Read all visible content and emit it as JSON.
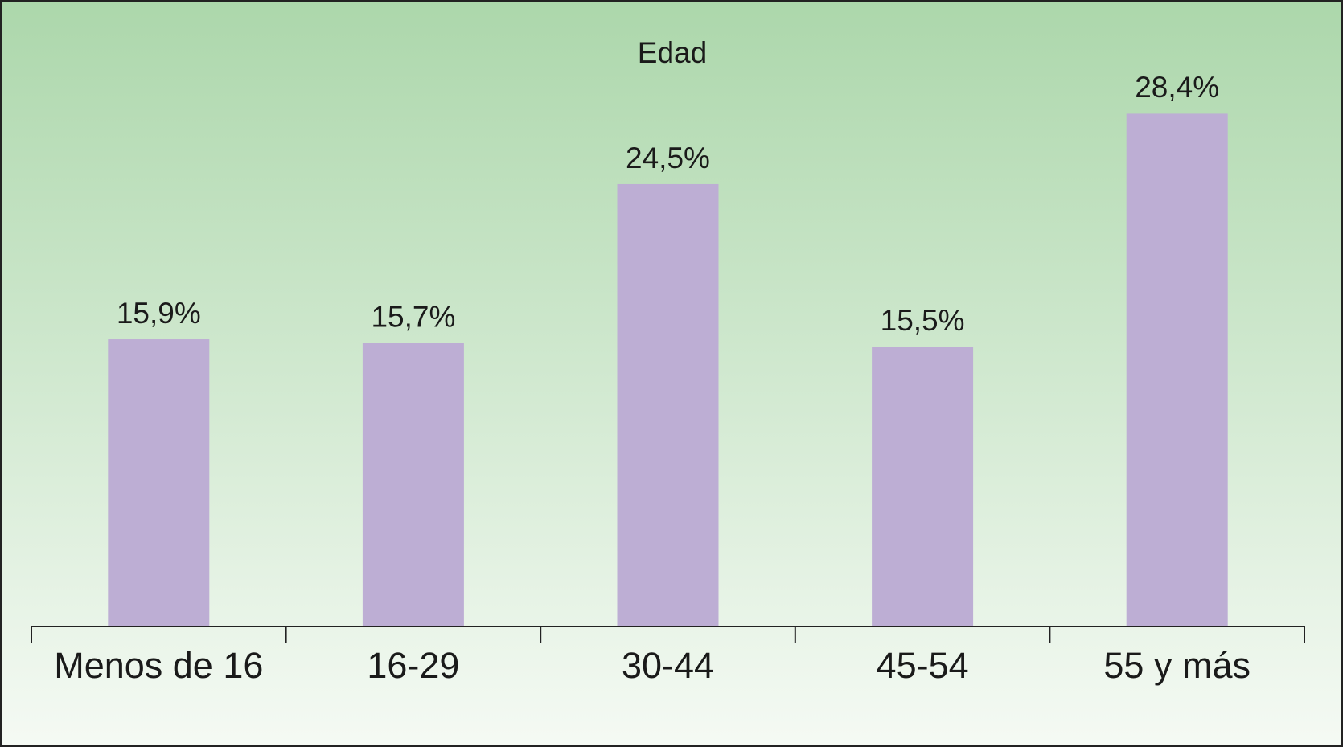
{
  "chart_data": {
    "type": "bar",
    "title": "Edad",
    "categories": [
      "Menos de 16",
      "16-29",
      "30-44",
      "45-54",
      "55 y más"
    ],
    "values": [
      15.9,
      15.7,
      24.5,
      15.5,
      28.4
    ],
    "value_labels": [
      "15,9%",
      "15,7%",
      "24,5%",
      "15,5%",
      "28,4%"
    ],
    "color": "#bdaed4"
  }
}
